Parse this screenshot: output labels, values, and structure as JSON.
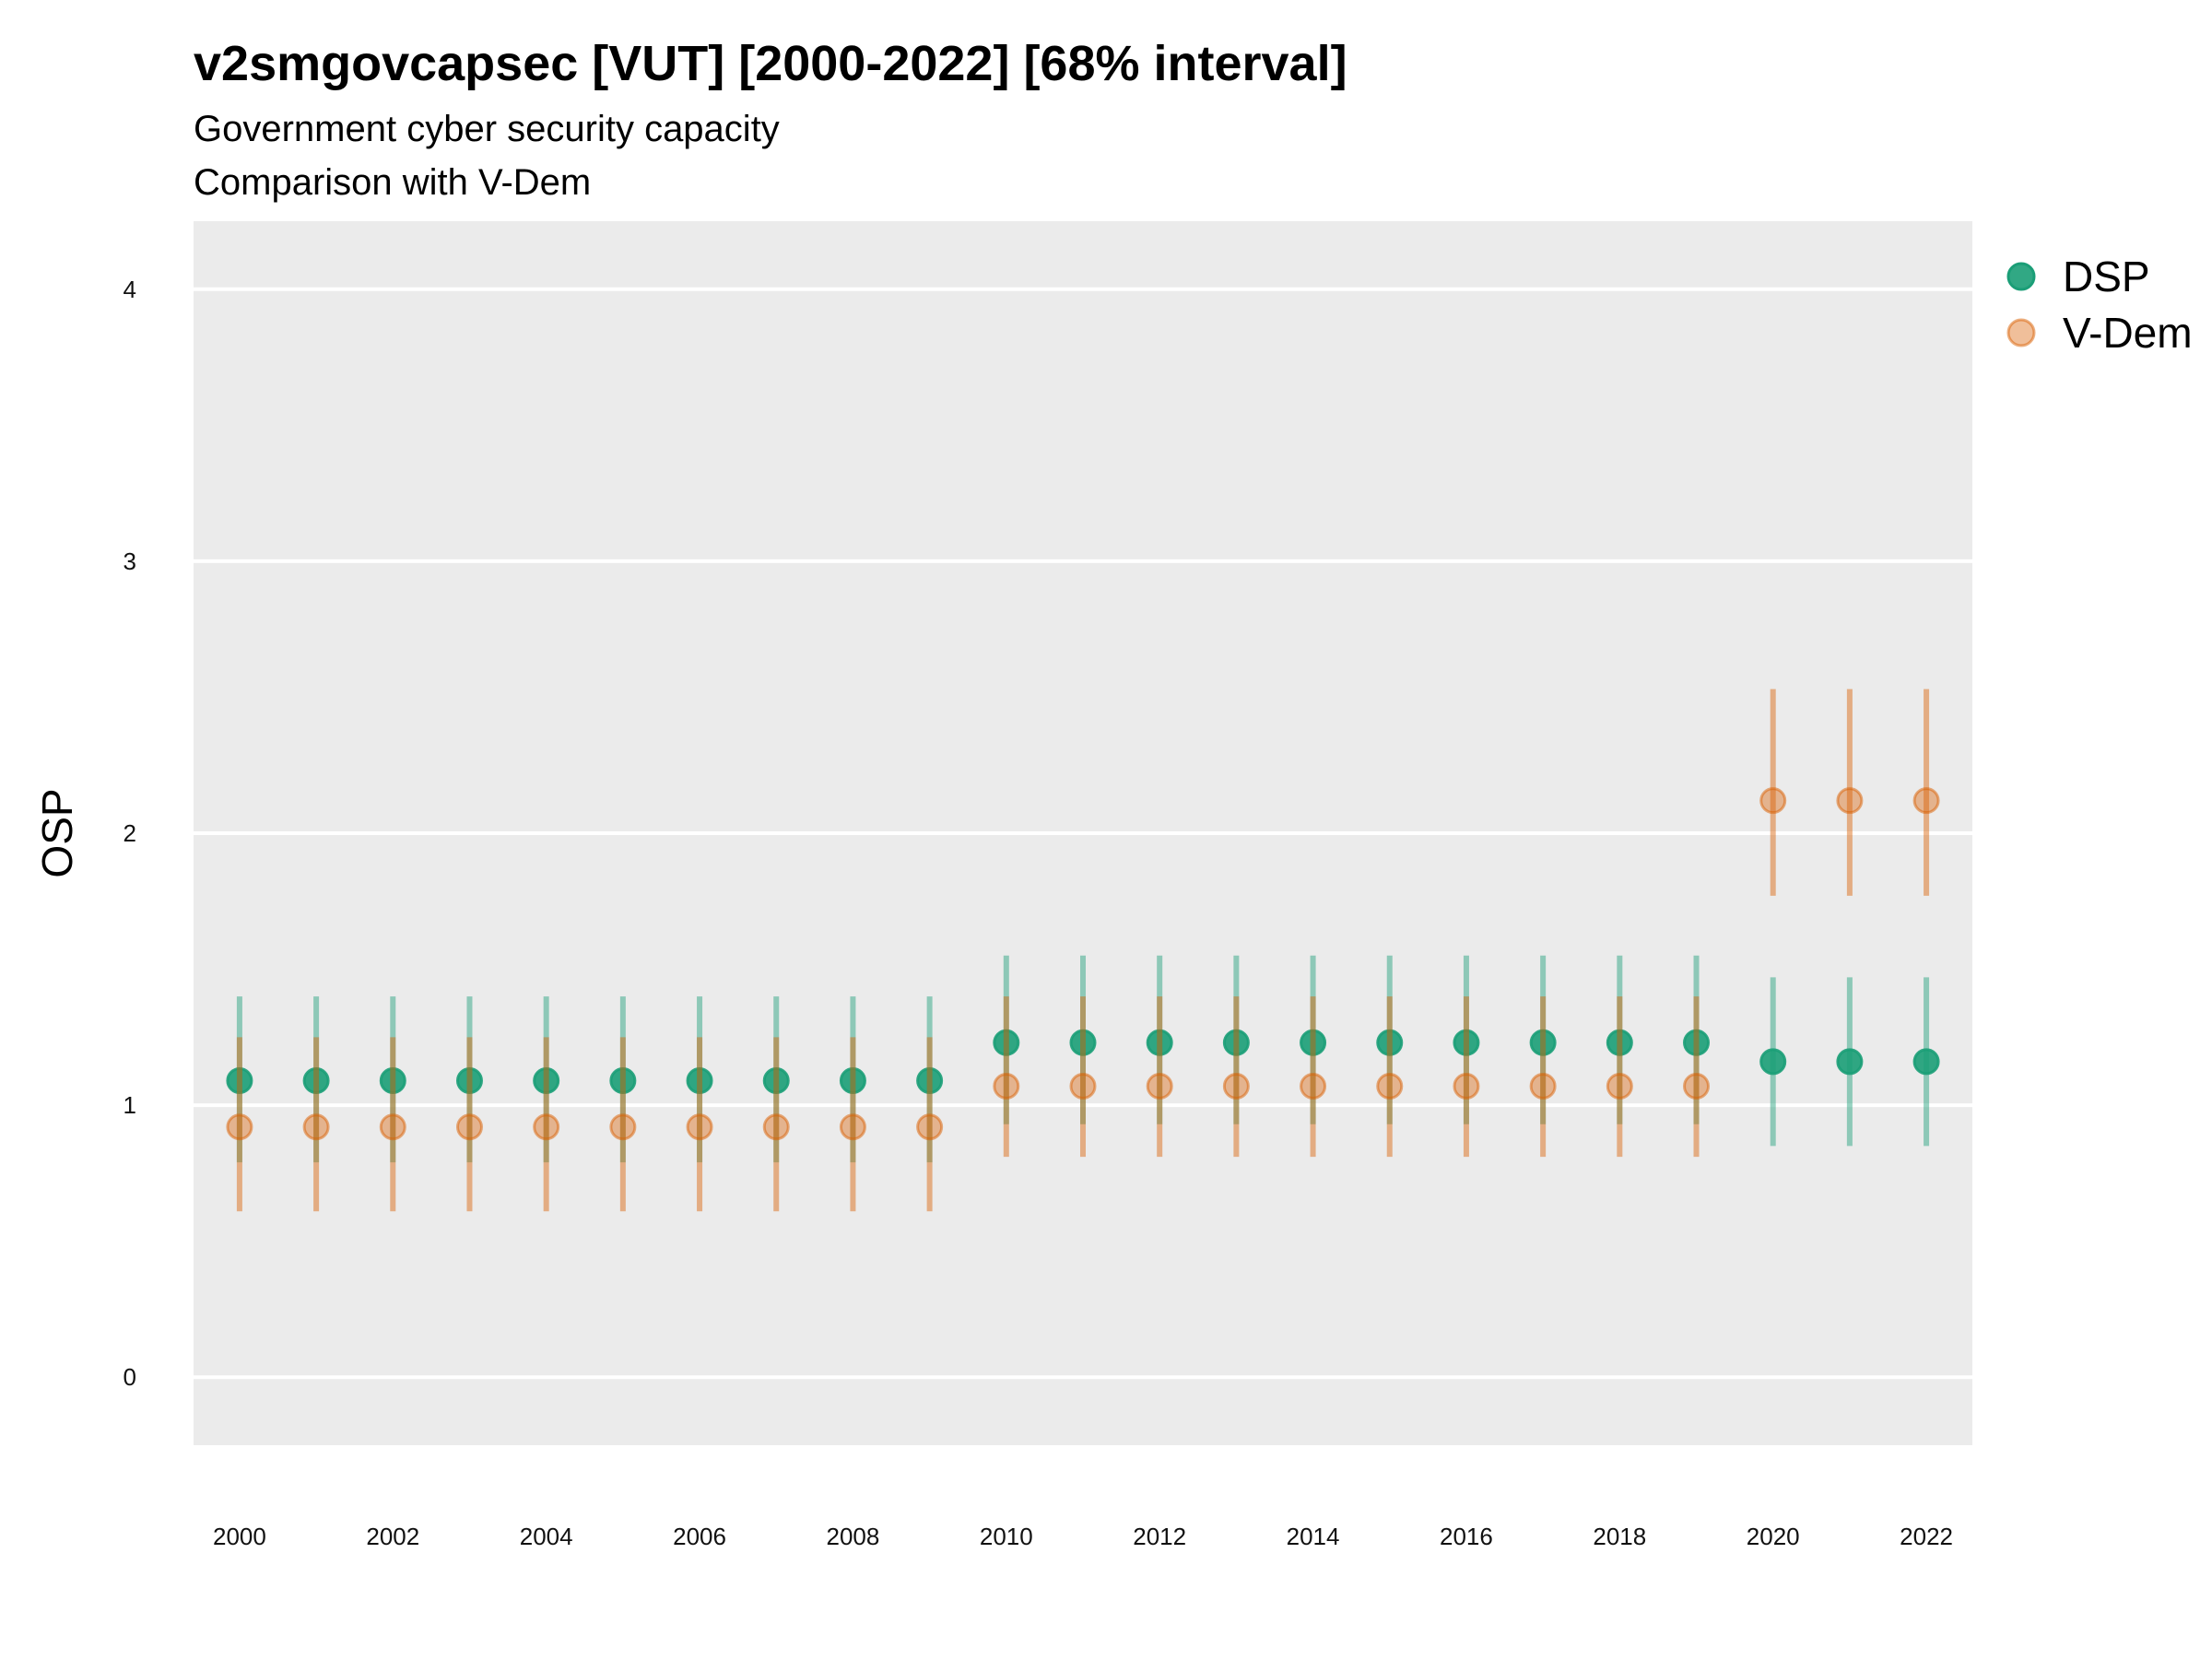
{
  "chart_data": {
    "type": "scatter",
    "title": "v2smgovcapsec [VUT] [2000-2022] [68% interval]",
    "subtitle": "Government cyber security capacity",
    "caption": "Comparison with V-Dem",
    "xlabel": "",
    "ylabel": "OSP",
    "ylim": [
      -0.25,
      4.25
    ],
    "y_ticks": [
      0,
      1,
      2,
      3,
      4
    ],
    "x": [
      2000,
      2001,
      2002,
      2003,
      2004,
      2005,
      2006,
      2007,
      2008,
      2009,
      2010,
      2011,
      2012,
      2013,
      2014,
      2015,
      2016,
      2017,
      2018,
      2019,
      2020,
      2021,
      2022
    ],
    "x_tick_labels": [
      "2000",
      "2002",
      "2004",
      "2006",
      "2008",
      "2010",
      "2012",
      "2014",
      "2016",
      "2018",
      "2020",
      "2022"
    ],
    "grid": true,
    "legend_position": "right",
    "series": [
      {
        "name": "DSP",
        "color": "#1b9e77",
        "values": [
          1.09,
          1.09,
          1.09,
          1.09,
          1.09,
          1.09,
          1.09,
          1.09,
          1.09,
          1.09,
          1.23,
          1.23,
          1.23,
          1.23,
          1.23,
          1.23,
          1.23,
          1.23,
          1.23,
          1.23,
          1.16,
          1.16,
          1.16
        ],
        "lower": [
          0.79,
          0.79,
          0.79,
          0.79,
          0.79,
          0.79,
          0.79,
          0.79,
          0.79,
          0.79,
          0.93,
          0.93,
          0.93,
          0.93,
          0.93,
          0.93,
          0.93,
          0.93,
          0.93,
          0.93,
          0.85,
          0.85,
          0.85
        ],
        "upper": [
          1.4,
          1.4,
          1.4,
          1.4,
          1.4,
          1.4,
          1.4,
          1.4,
          1.4,
          1.4,
          1.55,
          1.55,
          1.55,
          1.55,
          1.55,
          1.55,
          1.55,
          1.55,
          1.55,
          1.55,
          1.47,
          1.47,
          1.47
        ]
      },
      {
        "name": "V-Dem",
        "color": "#d95f02",
        "values": [
          0.92,
          0.92,
          0.92,
          0.92,
          0.92,
          0.92,
          0.92,
          0.92,
          0.92,
          0.92,
          1.07,
          1.07,
          1.07,
          1.07,
          1.07,
          1.07,
          1.07,
          1.07,
          1.07,
          1.07,
          2.12,
          2.12,
          2.12
        ],
        "lower": [
          0.61,
          0.61,
          0.61,
          0.61,
          0.61,
          0.61,
          0.61,
          0.61,
          0.61,
          0.61,
          0.81,
          0.81,
          0.81,
          0.81,
          0.81,
          0.81,
          0.81,
          0.81,
          0.81,
          0.81,
          1.77,
          1.77,
          1.77
        ],
        "upper": [
          1.25,
          1.25,
          1.25,
          1.25,
          1.25,
          1.25,
          1.25,
          1.25,
          1.25,
          1.25,
          1.4,
          1.4,
          1.4,
          1.4,
          1.4,
          1.4,
          1.4,
          1.4,
          1.4,
          1.4,
          2.53,
          2.53,
          2.53
        ]
      }
    ]
  }
}
